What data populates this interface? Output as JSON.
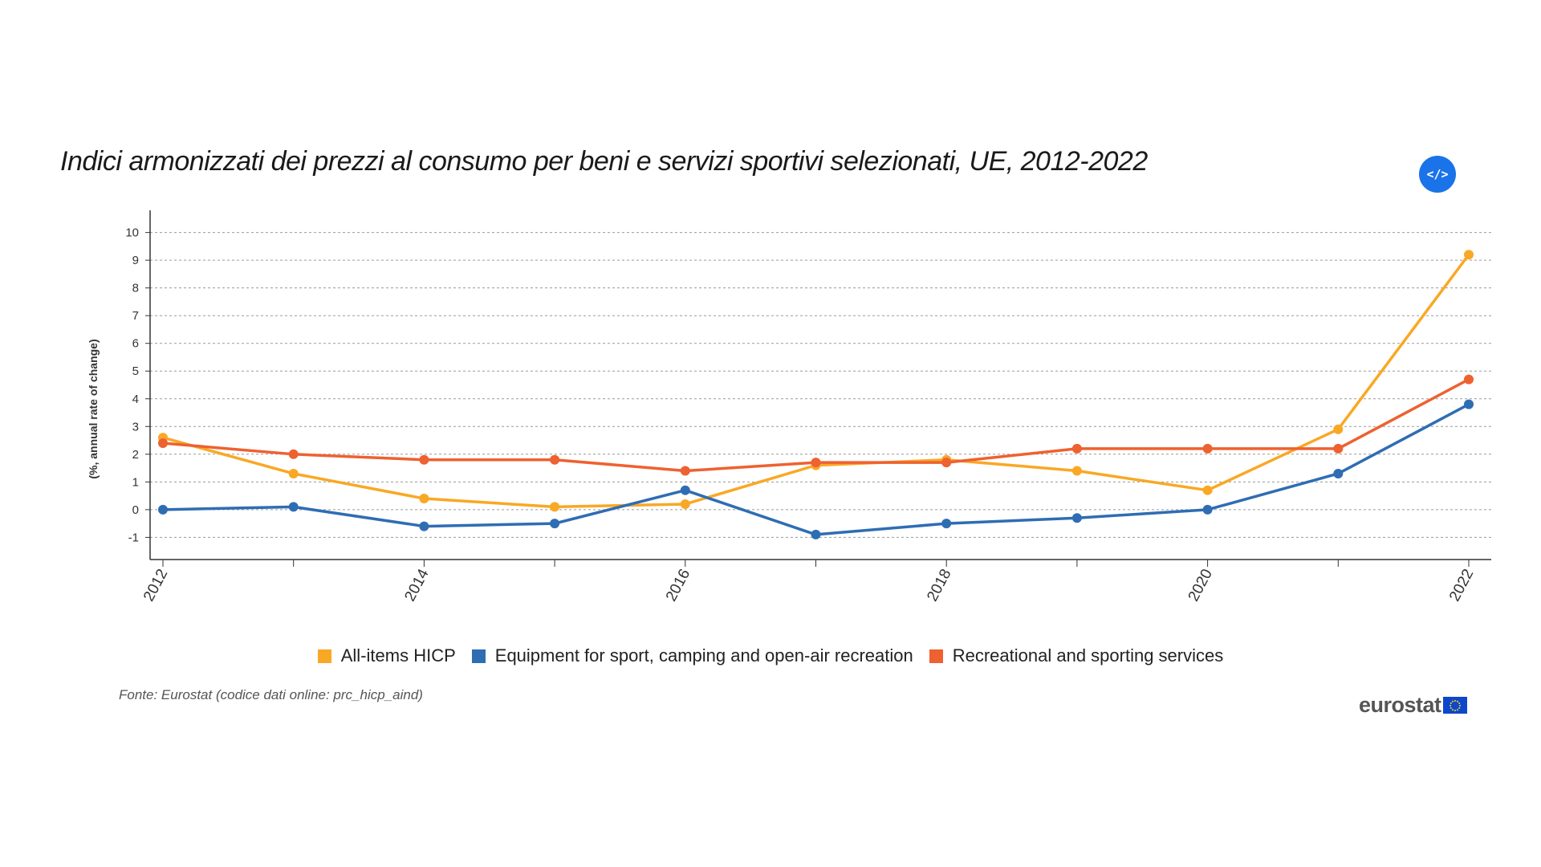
{
  "title": "Indici armonizzati dei prezzi al consumo per beni e servizi sportivi selezionati, UE, 2012-2022",
  "embed_button": {
    "label": "</>",
    "icon": "code-icon"
  },
  "source": "Fonte: Eurostat (codice dati online: prc_hicp_aind)",
  "logo": {
    "text": "eurostat",
    "icon": "eu-flag-icon"
  },
  "chart_data": {
    "type": "line",
    "x": [
      2012,
      2013,
      2014,
      2015,
      2016,
      2017,
      2018,
      2019,
      2020,
      2021,
      2022
    ],
    "x_tick_labels": [
      "2012",
      "2014",
      "2016",
      "2018",
      "2020",
      "2022"
    ],
    "ylabel": "(%, annual rate of change)",
    "ylim": [
      -1.8,
      10.8
    ],
    "y_ticks": [
      -1,
      0,
      1,
      2,
      3,
      4,
      5,
      6,
      7,
      8,
      9,
      10
    ],
    "grid": true,
    "legend_position": "bottom",
    "series": [
      {
        "name": "All-items HICP",
        "color": "#f9a825",
        "values": [
          2.6,
          1.3,
          0.4,
          0.1,
          0.2,
          1.6,
          1.8,
          1.4,
          0.7,
          2.9,
          9.2
        ]
      },
      {
        "name": "Equipment for sport, camping and open-air recreation",
        "color": "#2f6db3",
        "values": [
          0.0,
          0.1,
          -0.6,
          -0.5,
          0.7,
          -0.9,
          -0.5,
          -0.3,
          0.0,
          1.3,
          3.8
        ]
      },
      {
        "name": "Recreational and sporting services",
        "color": "#ee6130",
        "values": [
          2.4,
          2.0,
          1.8,
          1.8,
          1.4,
          1.7,
          1.7,
          2.2,
          2.2,
          2.2,
          4.7
        ]
      }
    ]
  }
}
